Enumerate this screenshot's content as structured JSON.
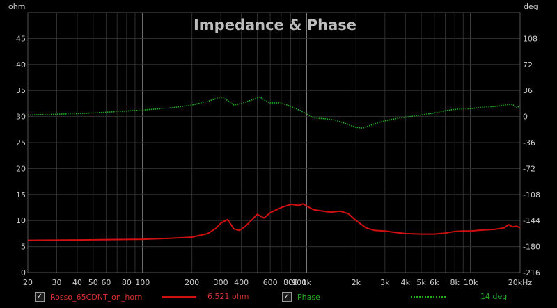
{
  "chart_data": {
    "type": "line",
    "title": "Impedance & Phase",
    "ylabel_left": "ohm",
    "ylabel_right": "deg",
    "x_scale": "log",
    "xlim": [
      20,
      20000
    ],
    "ylim_left": [
      0,
      50
    ],
    "ylim_right": [
      -216,
      144
    ],
    "xticks": [
      {
        "v": 20,
        "t": "20"
      },
      {
        "v": 30,
        "t": "30"
      },
      {
        "v": 40,
        "t": "40"
      },
      {
        "v": 50,
        "t": "50"
      },
      {
        "v": 60,
        "t": "60"
      },
      {
        "v": 80,
        "t": "80"
      },
      {
        "v": 100,
        "t": "100"
      },
      {
        "v": 200,
        "t": "200"
      },
      {
        "v": 300,
        "t": "300"
      },
      {
        "v": 400,
        "t": "400"
      },
      {
        "v": 600,
        "t": "600"
      },
      {
        "v": 800,
        "t": "800"
      },
      {
        "v": 900,
        "t": "900"
      },
      {
        "v": 1000,
        "t": "1k"
      },
      {
        "v": 2000,
        "t": "2k"
      },
      {
        "v": 3000,
        "t": "3k"
      },
      {
        "v": 4000,
        "t": "4k"
      },
      {
        "v": 5000,
        "t": "5k"
      },
      {
        "v": 6000,
        "t": "6k"
      },
      {
        "v": 8000,
        "t": "8k"
      },
      {
        "v": 10000,
        "t": "10k"
      },
      {
        "v": 20000,
        "t": "20kHz"
      }
    ],
    "yticks_left": [
      "0",
      "5",
      "10",
      "15",
      "20",
      "25",
      "30",
      "35",
      "40",
      "45"
    ],
    "yticks_right": [
      "-216",
      "-180",
      "-144",
      "-108",
      "-72",
      "-36",
      "0",
      "36",
      "72",
      "108"
    ],
    "grid": true,
    "series": [
      {
        "name": "Rosso_65CDNT_on_horn",
        "axis": "left",
        "color": "#d01010",
        "style": "solid",
        "x": [
          20,
          50,
          100,
          150,
          200,
          250,
          280,
          300,
          330,
          360,
          390,
          420,
          460,
          500,
          550,
          600,
          650,
          700,
          750,
          800,
          850,
          900,
          950,
          1000,
          1100,
          1200,
          1400,
          1600,
          1800,
          2000,
          2300,
          2600,
          3000,
          3500,
          4000,
          5000,
          6000,
          7000,
          8000,
          9000,
          10000,
          11000,
          12000,
          14000,
          16000,
          17000,
          18000,
          19000,
          20000
        ],
        "values": [
          6.2,
          6.3,
          6.4,
          6.6,
          6.8,
          7.5,
          8.5,
          9.5,
          10.2,
          8.4,
          8.1,
          8.8,
          10.0,
          11.2,
          10.5,
          11.5,
          12.0,
          12.5,
          12.8,
          13.1,
          13.0,
          12.9,
          13.2,
          12.8,
          12.1,
          11.9,
          11.6,
          11.8,
          11.3,
          10.0,
          8.6,
          8.1,
          8.0,
          7.7,
          7.5,
          7.4,
          7.4,
          7.6,
          7.9,
          8.0,
          8.0,
          8.1,
          8.2,
          8.3,
          8.6,
          9.2,
          8.8,
          8.9,
          8.6
        ]
      },
      {
        "name": "Phase",
        "axis": "right",
        "color": "#22b022",
        "style": "dotted",
        "x": [
          20,
          40,
          60,
          100,
          150,
          200,
          250,
          290,
          310,
          330,
          360,
          400,
          450,
          520,
          560,
          600,
          700,
          800,
          900,
          1000,
          1100,
          1300,
          1500,
          1700,
          2000,
          2200,
          2600,
          3000,
          3500,
          4000,
          5000,
          6000,
          7000,
          8000,
          10000,
          12000,
          14000,
          16000,
          18000,
          19000,
          20000
        ],
        "values": [
          2,
          4,
          6,
          9,
          12,
          16,
          21,
          26,
          26,
          22,
          16,
          18,
          22,
          27,
          22,
          19,
          19,
          14,
          9,
          4,
          -2,
          -3,
          -5,
          -9,
          -15,
          -16,
          -10,
          -6,
          -3,
          -1,
          2,
          5,
          8,
          10,
          11,
          13,
          14,
          16,
          17,
          12,
          15
        ]
      }
    ]
  },
  "legend": {
    "s1_name": "Rosso_65CDNT_on_horn",
    "s1_value": "6.521 ohm",
    "s2_name": "Phase",
    "s2_value": "14 deg",
    "check": "✓"
  }
}
